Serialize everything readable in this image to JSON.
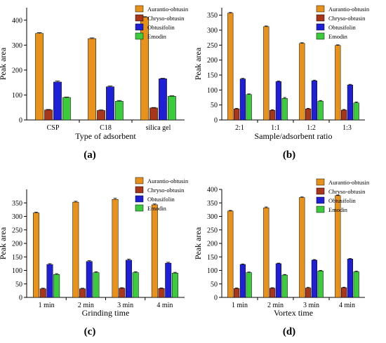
{
  "figure": {
    "colors": {
      "Aurantio-obtusin": "#E8921C",
      "Chryso-obtusin": "#A8361A",
      "Obtusifolin": "#1F1FD6",
      "Emodin": "#3CCB3C"
    }
  },
  "chart_data": [
    {
      "panel_label": "(a)",
      "type": "bar",
      "title": "",
      "xlabel": "Type of adsorbent",
      "ylabel": "Peak area",
      "categories": [
        "CSP",
        "C18",
        "silica gel"
      ],
      "ylim": [
        0,
        450
      ],
      "yticks": [
        0,
        100,
        200,
        300,
        400
      ],
      "legend": "top-right",
      "grid": false,
      "series": [
        {
          "name": "Aurantio-obtusin",
          "values": [
            347,
            326,
            412
          ],
          "errors": [
            3,
            3,
            2
          ]
        },
        {
          "name": "Chryso-obtusin",
          "values": [
            40,
            38,
            48
          ],
          "errors": [
            2,
            2,
            2
          ]
        },
        {
          "name": "Obtusifolin",
          "values": [
            152,
            133,
            165
          ],
          "errors": [
            4,
            3,
            2
          ]
        },
        {
          "name": "Emodin",
          "values": [
            90,
            75,
            95
          ],
          "errors": [
            2,
            3,
            2
          ]
        }
      ]
    },
    {
      "panel_label": "(b)",
      "type": "bar",
      "title": "",
      "xlabel": "Sample/adsorbent ratio",
      "ylabel": "Peak area",
      "categories": [
        "2:1",
        "1:1",
        "1:2",
        "1:3"
      ],
      "ylim": [
        0,
        375
      ],
      "yticks": [
        0,
        50,
        100,
        150,
        200,
        250,
        300,
        350
      ],
      "legend": "top-right",
      "grid": false,
      "series": [
        {
          "name": "Aurantio-obtusin",
          "values": [
            357,
            312,
            256,
            249
          ],
          "errors": [
            2,
            2,
            2,
            2
          ]
        },
        {
          "name": "Chryso-obtusin",
          "values": [
            37,
            32,
            37,
            33
          ],
          "errors": [
            2,
            2,
            2,
            2
          ]
        },
        {
          "name": "Obtusifolin",
          "values": [
            137,
            128,
            131,
            117
          ],
          "errors": [
            2,
            2,
            2,
            2
          ]
        },
        {
          "name": "Emodin",
          "values": [
            85,
            72,
            63,
            57
          ],
          "errors": [
            2,
            3,
            2,
            3
          ]
        }
      ]
    },
    {
      "panel_label": "(c)",
      "type": "bar",
      "title": "",
      "xlabel": "Grinding time",
      "ylabel": "Peak area",
      "categories": [
        "1 min",
        "2 min",
        "3 min",
        "4 min"
      ],
      "ylim": [
        0,
        400
      ],
      "yticks": [
        0,
        50,
        100,
        150,
        200,
        250,
        300,
        350
      ],
      "legend": "top-right",
      "grid": false,
      "series": [
        {
          "name": "Aurantio-obtusin",
          "values": [
            313,
            353,
            363,
            343
          ],
          "errors": [
            3,
            3,
            4,
            3
          ]
        },
        {
          "name": "Chryso-obtusin",
          "values": [
            32,
            32,
            34,
            33
          ],
          "errors": [
            2,
            2,
            2,
            2
          ]
        },
        {
          "name": "Obtusifolin",
          "values": [
            122,
            133,
            138,
            127
          ],
          "errors": [
            3,
            3,
            4,
            3
          ]
        },
        {
          "name": "Emodin",
          "values": [
            85,
            92,
            92,
            90
          ],
          "errors": [
            3,
            3,
            3,
            3
          ]
        }
      ]
    },
    {
      "panel_label": "(d)",
      "type": "bar",
      "title": "",
      "xlabel": "Vortex time",
      "ylabel": "Peak area",
      "categories": [
        "1 min",
        "2 min",
        "3 min",
        "4 min"
      ],
      "ylim": [
        0,
        400
      ],
      "yticks": [
        0,
        50,
        100,
        150,
        200,
        250,
        300,
        350,
        400
      ],
      "legend": "top-right",
      "grid": false,
      "series": [
        {
          "name": "Aurantio-obtusin",
          "values": [
            320,
            332,
            370,
            377
          ],
          "errors": [
            2,
            3,
            2,
            2
          ]
        },
        {
          "name": "Chryso-obtusin",
          "values": [
            33,
            34,
            35,
            36
          ],
          "errors": [
            2,
            2,
            2,
            2
          ]
        },
        {
          "name": "Obtusifolin",
          "values": [
            122,
            125,
            138,
            142
          ],
          "errors": [
            2,
            2,
            2,
            2
          ]
        },
        {
          "name": "Emodin",
          "values": [
            92,
            83,
            98,
            95
          ],
          "errors": [
            2,
            2,
            2,
            2
          ]
        }
      ]
    }
  ]
}
